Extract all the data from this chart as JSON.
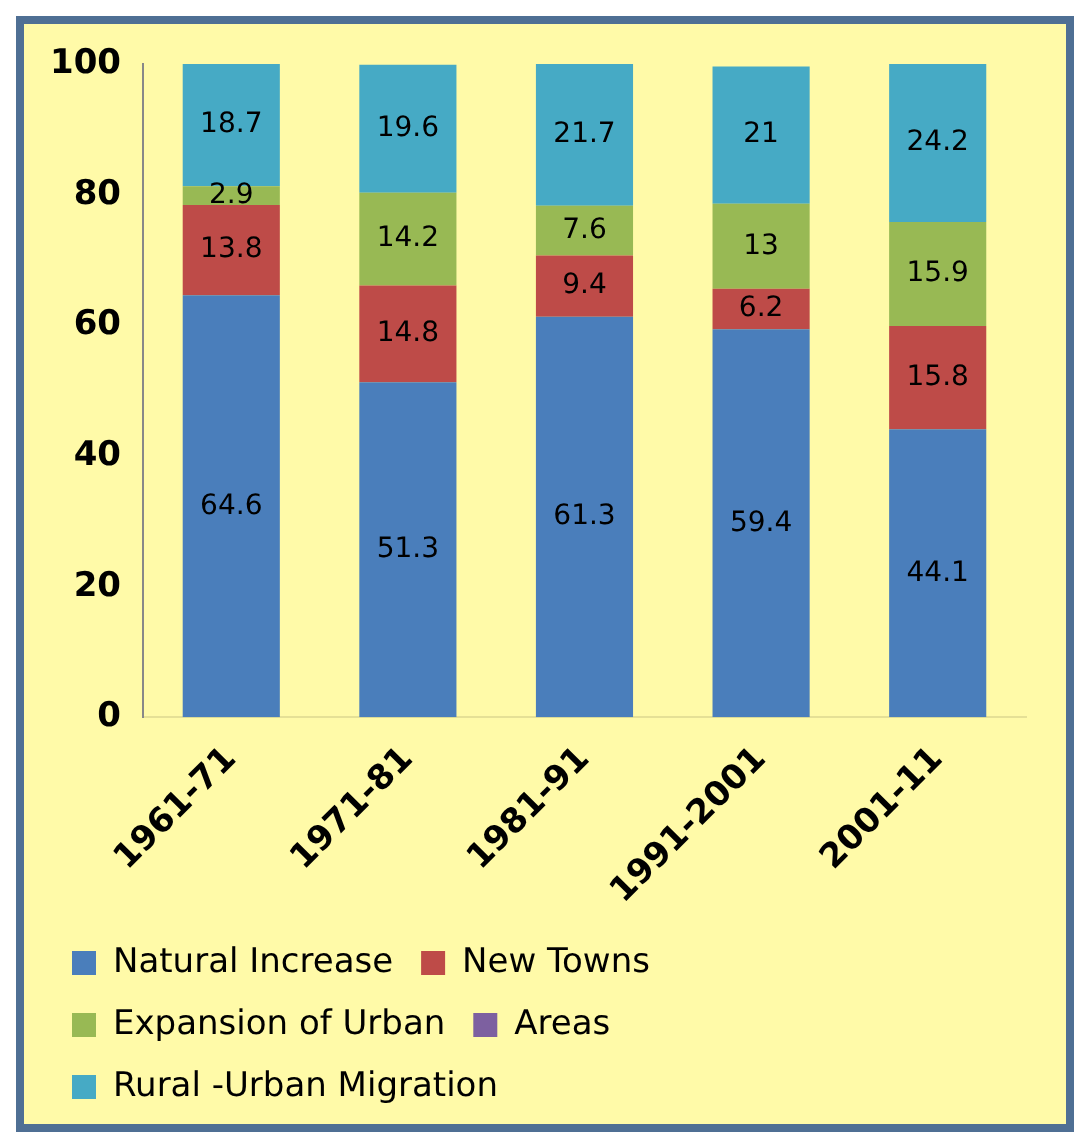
{
  "chart_data": {
    "type": "bar",
    "stacked": true,
    "categories": [
      "1961-71",
      "1971-81",
      "1981-91",
      "1991-2001",
      "2001-11"
    ],
    "series": [
      {
        "name": "Natural Increase",
        "color": "#4a7ebb",
        "values": [
          64.6,
          51.3,
          61.3,
          59.4,
          44.1
        ]
      },
      {
        "name": "New Towns",
        "color": "#be4b48",
        "values": [
          13.8,
          14.8,
          9.4,
          6.2,
          15.8
        ]
      },
      {
        "name": "Expansion of Urban",
        "color": "#98b954",
        "values": [
          2.9,
          14.2,
          7.6,
          13,
          15.9
        ]
      },
      {
        "name": "Areas",
        "color": "#7d60a0",
        "values": [
          null,
          null,
          null,
          null,
          null
        ]
      },
      {
        "name": "Rural -Urban Migration",
        "color": "#46aac5",
        "values": [
          18.7,
          19.6,
          21.7,
          21,
          24.2
        ]
      }
    ],
    "ylim": [
      0,
      100
    ],
    "yticks": [
      0,
      20,
      40,
      60,
      80,
      100
    ],
    "data_labels": true,
    "grid": false,
    "legend": "bottom"
  }
}
